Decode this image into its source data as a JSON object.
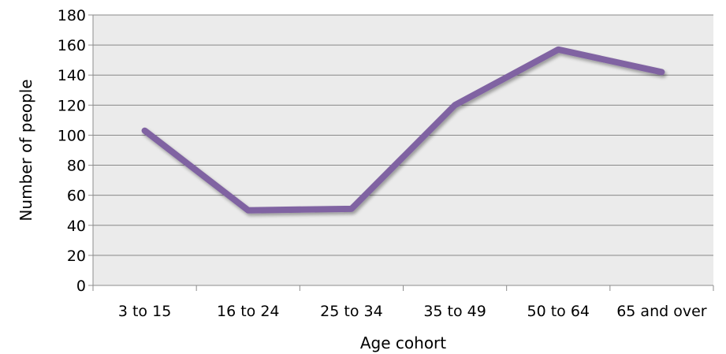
{
  "chart_data": {
    "type": "line",
    "categories": [
      "3 to 15",
      "16 to 24",
      "25 to 34",
      "35 to 49",
      "50 to 64",
      "65 and over"
    ],
    "series": [
      {
        "values": [
          103,
          50,
          51,
          120,
          157,
          142
        ]
      }
    ],
    "xlabel": "Age cohort",
    "ylabel": "Number of people",
    "ylim": [
      0,
      180
    ],
    "yticks": [
      0,
      20,
      40,
      60,
      80,
      100,
      120,
      140,
      160,
      180
    ],
    "grid": true,
    "legend": "none"
  },
  "colors": {
    "line": "#8064a2",
    "plot_background": "#ebebeb",
    "gridline": "#888888",
    "axis": "#8c8c8c"
  }
}
